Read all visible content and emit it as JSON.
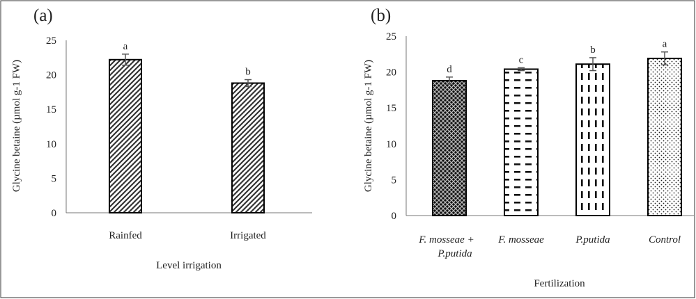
{
  "chart_data": [
    {
      "type": "bar",
      "panel_label": "(a)",
      "categories": [
        "Rainfed",
        "Irrigated"
      ],
      "values": [
        22.2,
        18.8
      ],
      "errors": [
        0.8,
        0.5
      ],
      "significance_letters": [
        "a",
        "b"
      ],
      "xlabel": "Level irrigation",
      "ylabel": "Glycine betaine (µmol g-1 FW)",
      "ylim": [
        0,
        25
      ],
      "yticks": [
        0,
        5,
        10,
        15,
        20,
        25
      ],
      "bar_patterns": [
        "diagonal-hatch",
        "diagonal-hatch"
      ],
      "grid": false,
      "legend": "none"
    },
    {
      "type": "bar",
      "panel_label": "(b)",
      "categories": [
        "F. mosseae + P.putida",
        "F. mosseae",
        "P.putida",
        "Control"
      ],
      "category_lines": [
        [
          "F. mosseae +",
          "P.putida"
        ],
        [
          "F. mosseae"
        ],
        [
          "P.putida"
        ],
        [
          "Control"
        ]
      ],
      "values": [
        18.8,
        20.4,
        21.1,
        21.9
      ],
      "errors": [
        0.5,
        0.2,
        0.9,
        0.9
      ],
      "significance_letters": [
        "d",
        "c",
        "b",
        "a"
      ],
      "xlabel": "Fertilization",
      "ylabel": "Glycine betaine (µmol g-1 FW)",
      "ylim": [
        0,
        25
      ],
      "yticks": [
        0,
        5,
        10,
        15,
        20,
        25
      ],
      "bar_patterns": [
        "cross-hatch",
        "dashes",
        "vertical-dashes",
        "dots"
      ],
      "grid": false,
      "legend": "none"
    }
  ]
}
